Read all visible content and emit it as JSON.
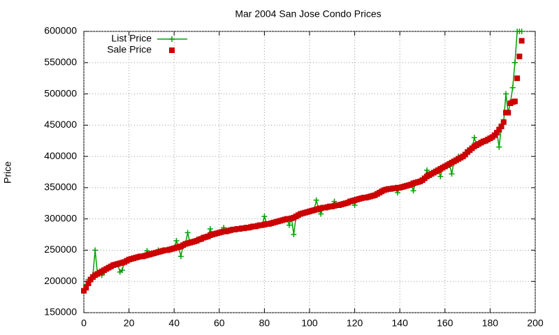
{
  "chart_data": {
    "type": "line",
    "title": "Mar 2004 San Jose Condo Prices",
    "y_label": "Price",
    "xlim": [
      0,
      200
    ],
    "xticks": [
      0,
      20,
      40,
      60,
      80,
      100,
      120,
      140,
      160,
      180,
      200
    ],
    "ylim": [
      150000,
      600000
    ],
    "yticks": [
      150000,
      200000,
      250000,
      300000,
      350000,
      400000,
      450000,
      500000,
      550000,
      600000
    ],
    "grid": true,
    "legend": "top-left",
    "x": [
      0,
      1,
      2,
      3,
      4,
      5,
      6,
      7,
      8,
      9,
      10,
      11,
      12,
      13,
      14,
      15,
      16,
      17,
      18,
      19,
      20,
      21,
      22,
      23,
      24,
      25,
      26,
      27,
      28,
      29,
      30,
      31,
      32,
      33,
      34,
      35,
      36,
      37,
      38,
      39,
      40,
      41,
      42,
      43,
      44,
      45,
      46,
      47,
      48,
      49,
      50,
      51,
      52,
      53,
      54,
      55,
      56,
      57,
      58,
      59,
      60,
      61,
      62,
      63,
      64,
      65,
      66,
      67,
      68,
      69,
      70,
      71,
      72,
      73,
      74,
      75,
      76,
      77,
      78,
      79,
      80,
      81,
      82,
      83,
      84,
      85,
      86,
      87,
      88,
      89,
      90,
      91,
      92,
      93,
      94,
      95,
      96,
      97,
      98,
      99,
      100,
      101,
      102,
      103,
      104,
      105,
      106,
      107,
      108,
      109,
      110,
      111,
      112,
      113,
      114,
      115,
      116,
      117,
      118,
      119,
      120,
      121,
      122,
      123,
      124,
      125,
      126,
      127,
      128,
      129,
      130,
      131,
      132,
      133,
      134,
      135,
      136,
      137,
      138,
      139,
      140,
      141,
      142,
      143,
      144,
      145,
      146,
      147,
      148,
      149,
      150,
      151,
      152,
      153,
      154,
      155,
      156,
      157,
      158,
      159,
      160,
      161,
      162,
      163,
      164,
      165,
      166,
      167,
      168,
      169,
      170,
      171,
      172,
      173,
      174,
      175,
      176,
      177,
      178,
      179,
      180,
      181,
      182,
      183,
      184,
      185,
      186,
      187,
      188,
      189,
      190,
      191,
      192,
      193,
      194
    ],
    "series": [
      {
        "name": "List Price",
        "color": "#00a000",
        "style": "line-plus",
        "values": [
          185000,
          195000,
          203000,
          205000,
          210000,
          250000,
          213000,
          212000,
          210000,
          215000,
          220000,
          222000,
          224000,
          226000,
          227000,
          228000,
          215000,
          218000,
          231000,
          233000,
          235000,
          236000,
          237000,
          238000,
          239000,
          240000,
          240000,
          241000,
          249000,
          243000,
          244000,
          245000,
          246000,
          250000,
          248000,
          249000,
          250000,
          250000,
          251000,
          252000,
          253000,
          265000,
          255000,
          240000,
          258000,
          260000,
          278000,
          262000,
          263000,
          264000,
          265000,
          267000,
          268000,
          270000,
          271000,
          272000,
          284000,
          275000,
          276000,
          277000,
          278000,
          279000,
          286000,
          280000,
          281000,
          282000,
          283000,
          283000,
          284000,
          284000,
          285000,
          285000,
          286000,
          286000,
          287000,
          288000,
          288000,
          289000,
          290000,
          290000,
          304000,
          292000,
          292000,
          293000,
          294000,
          295000,
          296000,
          297000,
          298000,
          299000,
          300000,
          290000,
          301000,
          275000,
          304000,
          306000,
          308000,
          309000,
          310000,
          311000,
          312000,
          313000,
          314000,
          330000,
          316000,
          308000,
          318000,
          318000,
          319000,
          320000,
          320000,
          328000,
          322000,
          322000,
          323000,
          324000,
          325000,
          326000,
          328000,
          329000,
          322000,
          331000,
          332000,
          333000,
          334000,
          334000,
          335000,
          336000,
          337000,
          338000,
          340000,
          342000,
          344000,
          346000,
          347000,
          348000,
          348000,
          349000,
          349000,
          342000,
          350000,
          351000,
          352000,
          353000,
          354000,
          355000,
          345000,
          358000,
          359000,
          360000,
          362000,
          365000,
          378000,
          370000,
          372000,
          374000,
          376000,
          378000,
          368000,
          382000,
          384000,
          386000,
          388000,
          372000,
          392000,
          394000,
          400000,
          398000,
          400000,
          403000,
          407000,
          410000,
          413000,
          430000,
          418000,
          420000,
          422000,
          424000,
          425000,
          427000,
          429000,
          431000,
          437000,
          438000,
          415000,
          448000,
          455000,
          500000,
          470000,
          486000,
          510000,
          550000,
          600000,
          600000,
          600000
        ]
      },
      {
        "name": "Sale Price",
        "color": "#cc0000",
        "style": "square",
        "values": [
          185000,
          190000,
          197000,
          203000,
          207000,
          210000,
          212000,
          214000,
          216000,
          218000,
          220000,
          222000,
          224000,
          226000,
          227000,
          228000,
          229000,
          230000,
          231000,
          233000,
          235000,
          236000,
          237000,
          238000,
          239000,
          240000,
          240000,
          241000,
          242000,
          243000,
          244000,
          245000,
          246000,
          247000,
          248000,
          249000,
          250000,
          250000,
          251000,
          252000,
          253000,
          254000,
          255000,
          256000,
          258000,
          260000,
          261000,
          262000,
          263000,
          264000,
          265000,
          267000,
          268000,
          270000,
          271000,
          272000,
          274000,
          275000,
          276000,
          277000,
          278000,
          279000,
          280000,
          280000,
          281000,
          282000,
          283000,
          283000,
          284000,
          284000,
          285000,
          285000,
          286000,
          286000,
          287000,
          288000,
          288000,
          289000,
          290000,
          290000,
          291000,
          292000,
          292000,
          293000,
          294000,
          295000,
          296000,
          297000,
          298000,
          299000,
          300000,
          300000,
          301000,
          302000,
          304000,
          306000,
          308000,
          309000,
          310000,
          311000,
          312000,
          313000,
          314000,
          315000,
          316000,
          317000,
          318000,
          318000,
          319000,
          320000,
          320000,
          321000,
          322000,
          322000,
          323000,
          324000,
          325000,
          326000,
          328000,
          329000,
          330000,
          331000,
          332000,
          333000,
          334000,
          334000,
          335000,
          336000,
          337000,
          338000,
          340000,
          342000,
          344000,
          346000,
          347000,
          348000,
          348000,
          349000,
          349000,
          350000,
          350000,
          351000,
          352000,
          353000,
          354000,
          355000,
          357000,
          358000,
          359000,
          360000,
          362000,
          365000,
          368000,
          370000,
          372000,
          374000,
          376000,
          378000,
          380000,
          382000,
          384000,
          386000,
          388000,
          390000,
          392000,
          394000,
          396000,
          398000,
          400000,
          403000,
          407000,
          410000,
          413000,
          416000,
          418000,
          420000,
          422000,
          424000,
          425000,
          427000,
          429000,
          431000,
          434000,
          438000,
          443000,
          448000,
          455000,
          470000,
          470000,
          485000,
          487000,
          488000,
          525000,
          560000,
          585000
        ]
      }
    ]
  }
}
